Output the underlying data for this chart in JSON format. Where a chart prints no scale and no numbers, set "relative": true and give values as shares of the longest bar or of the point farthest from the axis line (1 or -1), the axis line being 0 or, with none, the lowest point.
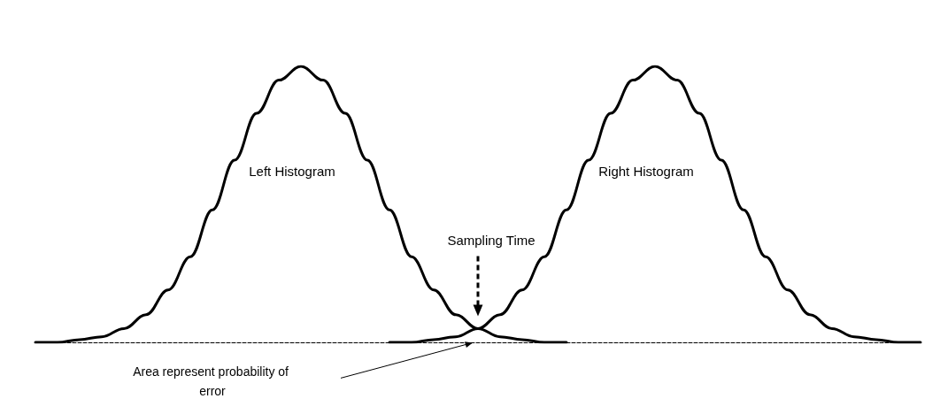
{
  "chart_data": {
    "type": "line",
    "relative": true,
    "categories": [
      null,
      null,
      null,
      null,
      null,
      null,
      null,
      null,
      null,
      null,
      null,
      null,
      null,
      null,
      null,
      null,
      null,
      null,
      null,
      null,
      null,
      null,
      null,
      null,
      null,
      null,
      null,
      null,
      null,
      null,
      null,
      null,
      null,
      null,
      null,
      null,
      null,
      null,
      null,
      null,
      null
    ],
    "series": [
      {
        "name": "Left Histogram",
        "color": "#000000",
        "values": [
          0,
          0,
          0.01,
          0.02,
          0.05,
          0.1,
          0.19,
          0.31,
          0.48,
          0.66,
          0.83,
          0.95,
          1,
          0.95,
          0.83,
          0.66,
          0.48,
          0.31,
          0.19,
          0.1,
          0.05,
          0.02,
          0.01,
          0,
          0,
          null,
          null,
          null,
          null,
          null,
          null,
          null,
          null,
          null,
          null,
          null,
          null,
          null,
          null,
          null,
          null
        ]
      },
      {
        "name": "Right Histogram",
        "color": "#000000",
        "values": [
          null,
          null,
          null,
          null,
          null,
          null,
          null,
          null,
          null,
          null,
          null,
          null,
          null,
          null,
          null,
          null,
          0,
          0,
          0.01,
          0.02,
          0.05,
          0.1,
          0.19,
          0.31,
          0.48,
          0.66,
          0.83,
          0.95,
          1,
          0.95,
          0.83,
          0.66,
          0.48,
          0.31,
          0.19,
          0.1,
          0.05,
          0.02,
          0.01,
          0,
          0
        ]
      }
    ],
    "annotations": [
      "Sampling Time",
      "Area represent probability of error"
    ],
    "grid": false,
    "legend": false,
    "marker": "none",
    "line_style": "solid"
  }
}
